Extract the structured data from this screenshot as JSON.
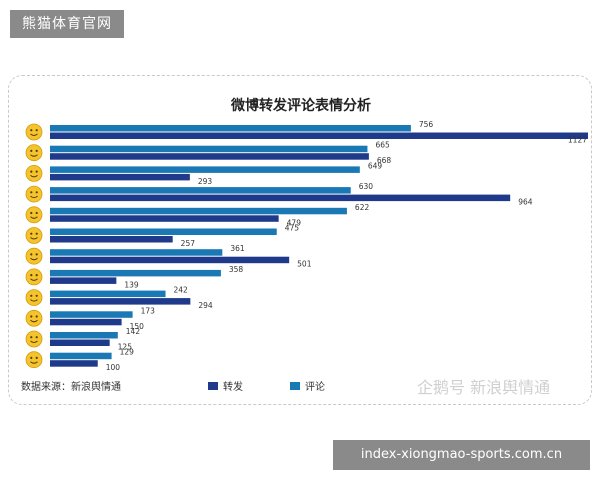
{
  "header": {
    "site_name": "熊猫体育官网"
  },
  "footer": {
    "url_banner": "index-xiongmao-sports.com.cn"
  },
  "chart_meta": {
    "source_note": "数据来源：新浪舆情通",
    "watermark": "企鹅号 新浪舆情通",
    "colors": {
      "repost": "#1f3a8a",
      "comment": "#1a78b5",
      "text": "#333333",
      "emoji": "#f4c430"
    }
  },
  "chart_data": {
    "type": "bar",
    "orientation": "horizontal",
    "title": "微博转发评论表情分析",
    "categories": [
      "emoji-1",
      "emoji-2",
      "emoji-3",
      "emoji-4",
      "emoji-5",
      "emoji-6",
      "emoji-7",
      "emoji-8",
      "emoji-9",
      "emoji-10",
      "emoji-11",
      "emoji-12"
    ],
    "series": [
      {
        "name": "评论",
        "values": [
          756,
          665,
          649,
          630,
          622,
          475,
          361,
          358,
          242,
          173,
          142,
          129
        ]
      },
      {
        "name": "转发",
        "values": [
          1127,
          668,
          293,
          964,
          479,
          257,
          501,
          139,
          294,
          150,
          125,
          100
        ]
      }
    ],
    "legend": [
      "转发",
      "评论"
    ],
    "legend_position": "bottom",
    "xlim": [
      0,
      1127
    ],
    "grid": false
  }
}
